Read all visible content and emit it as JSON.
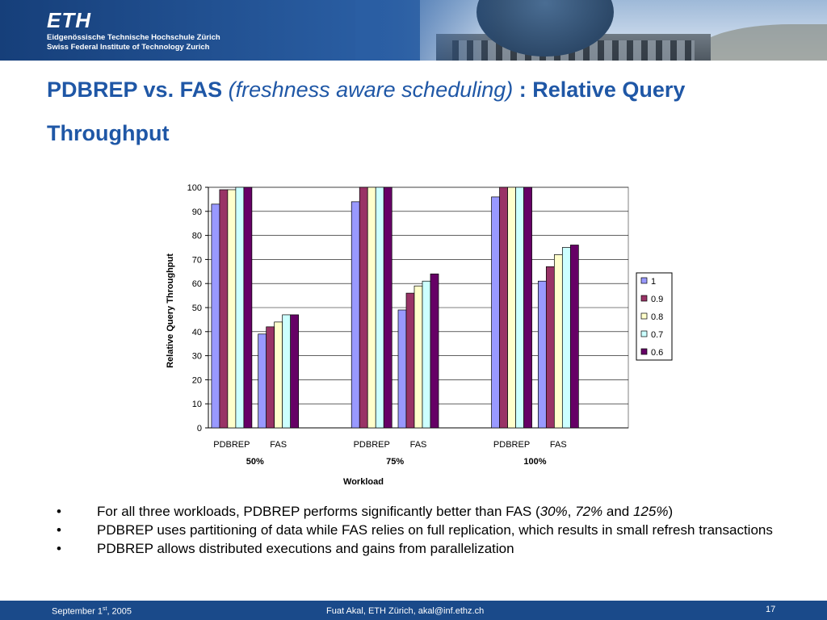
{
  "header": {
    "logo": "ETH",
    "line1": "Eidgenössische Technische Hochschule Zürich",
    "line2": "Swiss Federal Institute of Technology Zurich"
  },
  "title": {
    "part1": "PDBREP vs. FAS ",
    "part2": "(freshness aware scheduling)",
    "part3": " : Relative Query Throughput"
  },
  "chart_data": {
    "type": "bar",
    "ylabel": "Relative Query Throughput",
    "xlabel": "Workload",
    "ylim": [
      0,
      100
    ],
    "yticks": [
      0,
      10,
      20,
      30,
      40,
      50,
      60,
      70,
      80,
      90,
      100
    ],
    "grid": true,
    "legend_position": "right",
    "groups": [
      "50%",
      "75%",
      "100%"
    ],
    "categories": [
      "PDBREP",
      "FAS",
      "PDBREP",
      "FAS",
      "PDBREP",
      "FAS"
    ],
    "series": [
      {
        "name": "1",
        "color": "#9999ff",
        "values": [
          93,
          39,
          94,
          49,
          96,
          61
        ]
      },
      {
        "name": "0.9",
        "color": "#993366",
        "values": [
          99,
          42,
          100,
          56,
          100,
          67
        ]
      },
      {
        "name": "0.8",
        "color": "#ffffcc",
        "values": [
          99,
          44,
          100,
          59,
          100,
          72
        ]
      },
      {
        "name": "0.7",
        "color": "#ccffff",
        "values": [
          100,
          47,
          100,
          61,
          100,
          75
        ]
      },
      {
        "name": "0.6",
        "color": "#660066",
        "values": [
          100,
          47,
          100,
          64,
          100,
          76
        ]
      }
    ]
  },
  "bullets": {
    "b1_text": "For all three workloads, PDBREP performs significantly better than FAS (",
    "b1_v1": "30%",
    "b1_sep1": ", ",
    "b1_v2": "72%",
    "b1_sep2": " and ",
    "b1_v3": "125%",
    "b1_end": ")",
    "b2": "PDBREP uses partitioning of data while FAS relies on full replication, which results in small refresh transactions",
    "b3": "PDBREP allows distributed executions and gains from parallelization",
    "marker": "•"
  },
  "footer": {
    "date_prefix": "September 1",
    "date_sup": "st",
    "date_suffix": ", 2005",
    "author": "Fuat Akal, ETH Zürich, akal@inf.ethz.ch",
    "page": "17"
  }
}
